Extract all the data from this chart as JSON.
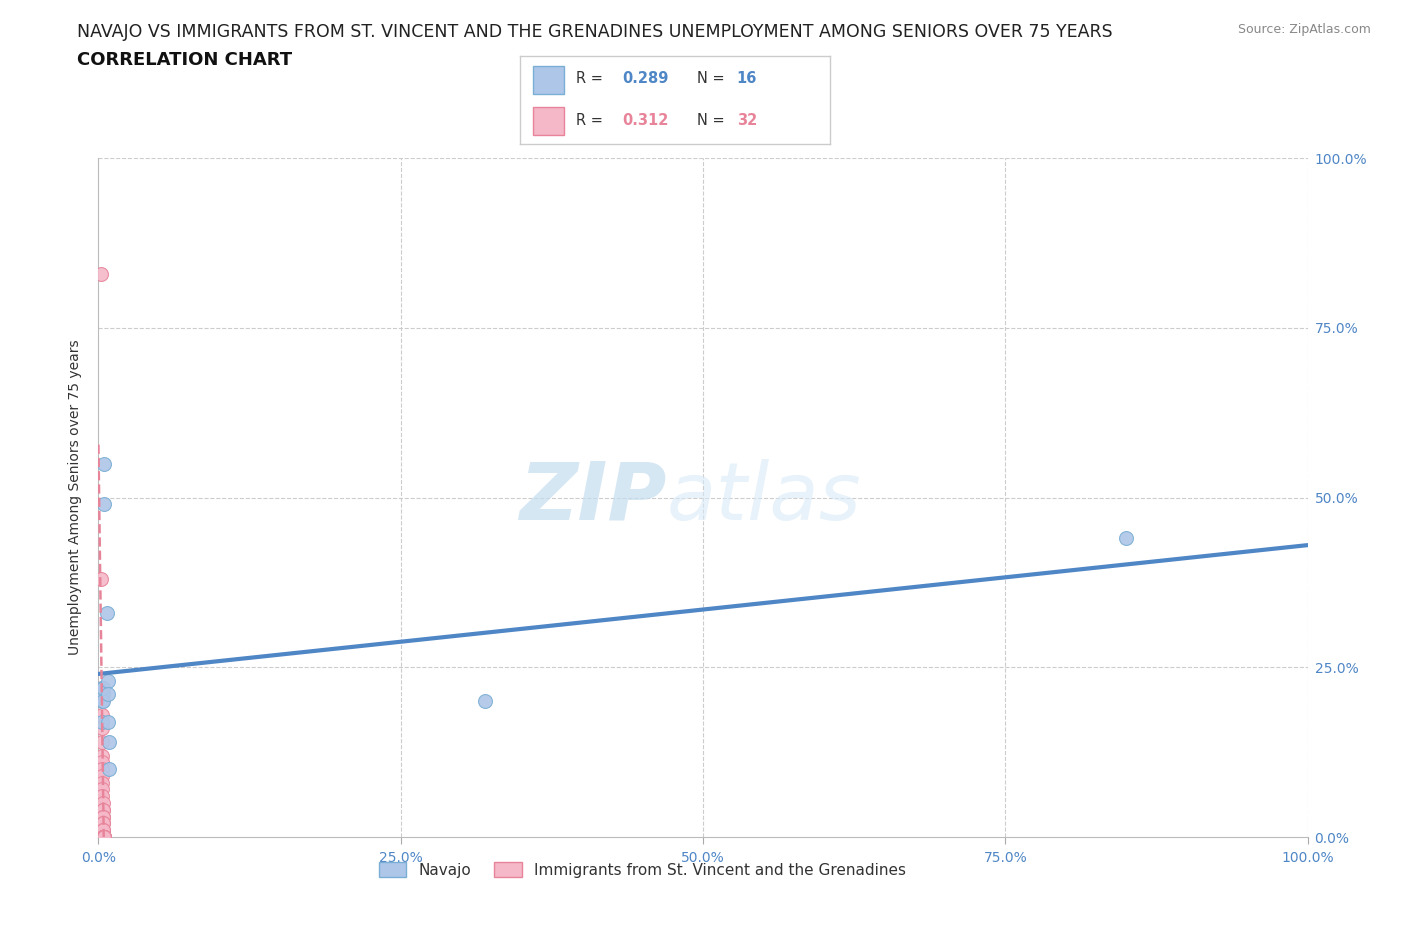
{
  "title_line1": "NAVAJO VS IMMIGRANTS FROM ST. VINCENT AND THE GRENADINES UNEMPLOYMENT AMONG SENIORS OVER 75 YEARS",
  "title_line2": "CORRELATION CHART",
  "source_text": "Source: ZipAtlas.com",
  "ylabel": "Unemployment Among Seniors over 75 years",
  "watermark_zip": "ZIP",
  "watermark_atlas": "atlas",
  "navajo_R": 0.289,
  "navajo_N": 16,
  "immigrant_R": 0.312,
  "immigrant_N": 32,
  "navajo_color": "#aec6e8",
  "navajo_edge_color": "#7aaed4",
  "immigrant_color": "#f4b8c8",
  "immigrant_edge_color": "#e8849a",
  "navajo_line_color": "#4f86c6",
  "immigrant_line_color": "#e8849a",
  "legend_navajo_label": "Navajo",
  "legend_immigrant_label": "Immigrants from St. Vincent and the Grenadines",
  "navajo_x": [
    0.003,
    0.003,
    0.003,
    0.004,
    0.004,
    0.004,
    0.005,
    0.005,
    0.007,
    0.008,
    0.008,
    0.008,
    0.009,
    0.009,
    0.85,
    0.32
  ],
  "navajo_y": [
    0.2,
    0.17,
    0.22,
    0.21,
    0.2,
    0.22,
    0.55,
    0.49,
    0.33,
    0.23,
    0.17,
    0.21,
    0.14,
    0.1,
    0.44,
    0.2
  ],
  "immigrant_x": [
    0.002,
    0.002,
    0.003,
    0.003,
    0.003,
    0.003,
    0.003,
    0.003,
    0.003,
    0.003,
    0.003,
    0.003,
    0.003,
    0.004,
    0.004,
    0.004,
    0.004,
    0.004,
    0.004,
    0.004,
    0.004,
    0.004,
    0.004,
    0.004,
    0.004,
    0.004,
    0.005,
    0.005,
    0.005,
    0.005,
    0.005,
    0.005
  ],
  "immigrant_y": [
    0.83,
    0.38,
    0.22,
    0.18,
    0.16,
    0.14,
    0.12,
    0.11,
    0.1,
    0.09,
    0.08,
    0.07,
    0.06,
    0.05,
    0.04,
    0.04,
    0.03,
    0.03,
    0.02,
    0.02,
    0.01,
    0.01,
    0.0,
    0.0,
    0.0,
    0.0,
    0.0,
    0.0,
    0.0,
    0.0,
    0.0,
    0.0
  ],
  "xlim": [
    0.0,
    1.0
  ],
  "ylim": [
    0.0,
    1.0
  ],
  "grid_ticks": [
    0.0,
    0.25,
    0.5,
    0.75,
    1.0
  ],
  "tick_labels": [
    "0.0%",
    "25.0%",
    "50.0%",
    "75.0%",
    "100.0%"
  ],
  "background_color": "#ffffff",
  "title_fontsize": 12.5,
  "subtitle_fontsize": 13,
  "axis_label_fontsize": 10,
  "tick_fontsize": 10,
  "legend_fontsize": 11,
  "marker_size": 100
}
